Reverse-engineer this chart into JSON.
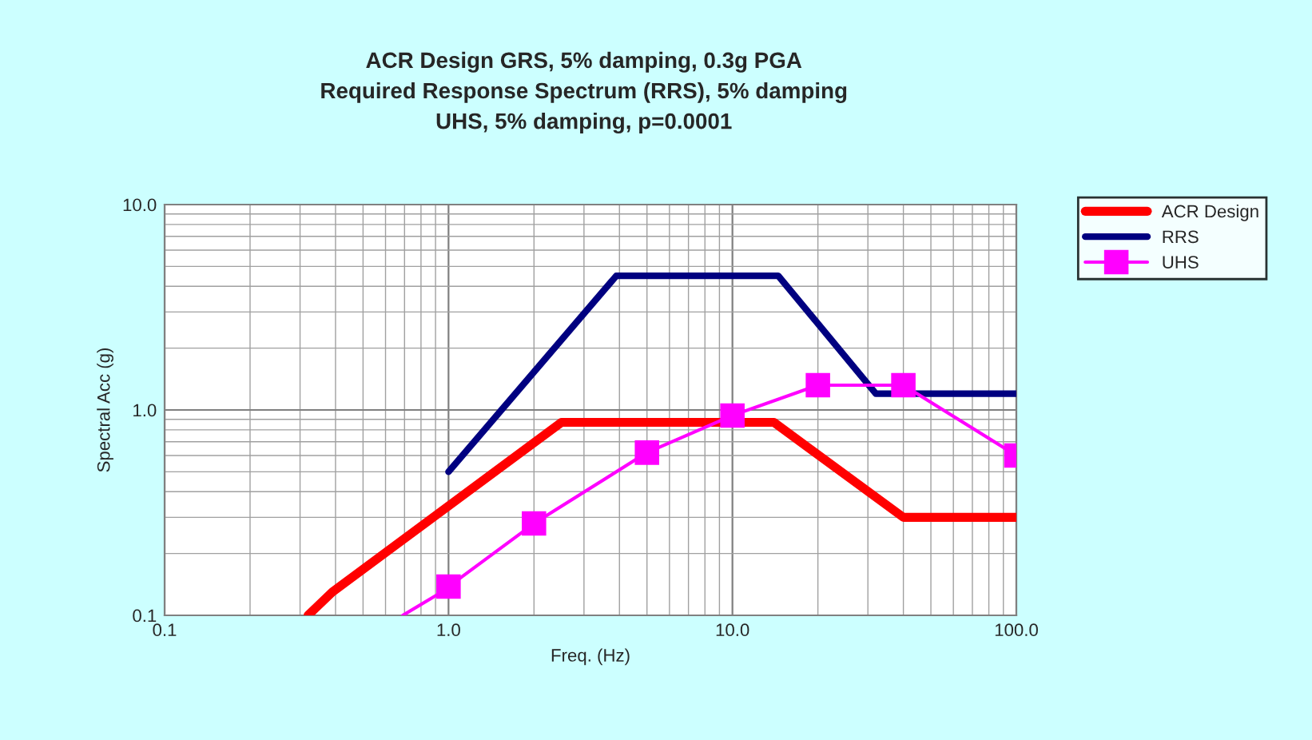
{
  "chart_data": {
    "type": "line",
    "title": "ACR Design GRS, 5% damping, 0.3g PGA\nRequired Response Spectrum (RRS), 5% damping\nUHS, 5% damping, p=0.0001",
    "xlabel": "Freq. (Hz)",
    "ylabel": "Spectral Acc (g)",
    "log": "xy",
    "grid": true,
    "legend": "right",
    "xlim": [
      0.1,
      100
    ],
    "ylim": [
      0.1,
      10
    ],
    "xticks": [
      {
        "value": 0.1,
        "label": "0.1"
      },
      {
        "value": 1,
        "label": "1.0"
      },
      {
        "value": 10,
        "label": "10.0"
      },
      {
        "value": 100,
        "label": "100.0"
      }
    ],
    "yticks": [
      {
        "value": 0.1,
        "label": "0.1"
      },
      {
        "value": 1,
        "label": "1.0"
      },
      {
        "value": 10,
        "label": "10.0"
      }
    ],
    "series": [
      {
        "name": "ACR Design",
        "color": "#ff0000",
        "marker": "none",
        "x": [
          0.32,
          0.39,
          2.5,
          14,
          40,
          100
        ],
        "values": [
          0.1,
          0.13,
          0.87,
          0.87,
          0.3,
          0.3
        ]
      },
      {
        "name": "RRS",
        "color": "#000080",
        "marker": "none",
        "x": [
          1,
          3.9,
          14.5,
          32,
          100
        ],
        "values": [
          0.5,
          4.5,
          4.5,
          1.2,
          1.2
        ]
      },
      {
        "color": "#ff00ff",
        "marker": "none",
        "x": [
          0.69,
          0.93
        ],
        "values": [
          0.1,
          0.128
        ]
      },
      {
        "name": "UHS",
        "color": "#ff00ff",
        "marker": "square",
        "x": [
          1,
          2,
          5,
          10,
          20,
          40,
          100
        ],
        "values": [
          0.138,
          0.28,
          0.62,
          0.94,
          1.32,
          1.32,
          0.6
        ]
      }
    ]
  }
}
